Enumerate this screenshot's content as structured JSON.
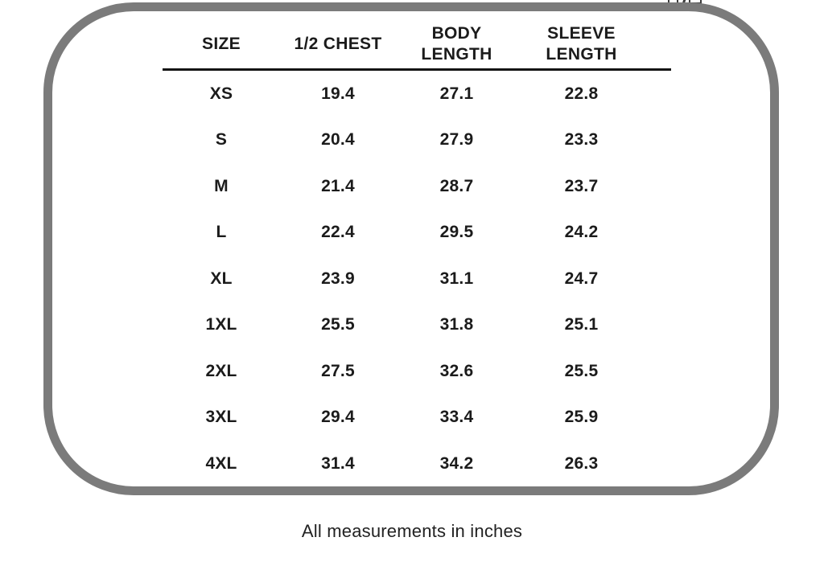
{
  "chart_data": {
    "type": "table",
    "columns": [
      "SIZE",
      "1/2 CHEST",
      "BODY LENGTH",
      "SLEEVE LENGTH"
    ],
    "rows": [
      [
        "XS",
        "19.4",
        "27.1",
        "22.8"
      ],
      [
        "S",
        "20.4",
        "27.9",
        "23.3"
      ],
      [
        "M",
        "21.4",
        "28.7",
        "23.7"
      ],
      [
        "L",
        "22.4",
        "29.5",
        "24.2"
      ],
      [
        "XL",
        "23.9",
        "31.1",
        "24.7"
      ],
      [
        "1XL",
        "25.5",
        "31.8",
        "25.1"
      ],
      [
        "2XL",
        "27.5",
        "32.6",
        "25.5"
      ],
      [
        "3XL",
        "29.4",
        "33.4",
        "25.9"
      ],
      [
        "4XL",
        "31.4",
        "34.2",
        "26.3"
      ]
    ],
    "footnote": "All measurements in inches",
    "layout": {
      "grid": "off",
      "header_rule": "solid black line under header row"
    }
  },
  "colors": {
    "frame_border": "#7b7b7b",
    "text": "#1b1b1b",
    "background": "#ffffff"
  },
  "icons": {
    "top_right_partial": "cropped-window-icons"
  }
}
